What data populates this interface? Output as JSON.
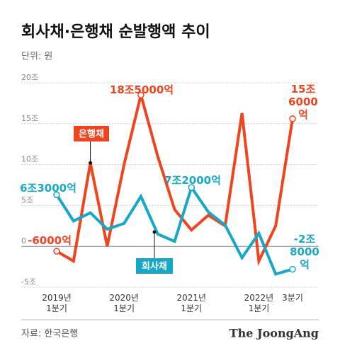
{
  "chart_data": {
    "type": "line",
    "title": "회사채·은행채 순발행액 추이",
    "subtitle": "단위: 원",
    "source": "자료: 한국은행",
    "brand": "The JoongAng",
    "categories": [
      "2019년\n1분기",
      null,
      null,
      null,
      "2020년\n1분기",
      null,
      null,
      null,
      "2021년\n1분기",
      null,
      null,
      null,
      "2022년\n1분기",
      null,
      "3분기"
    ],
    "series": [
      {
        "name": "은행채",
        "color": "#f0441e",
        "values": [
          -0.6,
          -1.8,
          10.2,
          0,
          10,
          18.5,
          11,
          4.5,
          2,
          3.8,
          2.5,
          16.3,
          -1.8,
          2.5,
          15.6
        ],
        "value_labels": [
          "-6000억",
          null,
          null,
          null,
          null,
          "18조5000억",
          null,
          null,
          null,
          null,
          null,
          null,
          null,
          null,
          "15조\n6000억"
        ]
      },
      {
        "name": "회사채",
        "color": "#17a7c9",
        "values": [
          6.3,
          3.1,
          4.1,
          2.1,
          2.8,
          6.1,
          1.5,
          0.6,
          7.2,
          4.2,
          2.6,
          -1.4,
          1.6,
          -3.4,
          -2.8
        ],
        "value_labels": [
          "6조3000억",
          null,
          null,
          null,
          null,
          null,
          null,
          null,
          "7조2000억",
          null,
          null,
          null,
          null,
          null,
          "-2조\n8000억"
        ]
      }
    ],
    "ylim": [
      -5,
      20
    ],
    "yticks": [
      {
        "value": 20,
        "label": "20조"
      },
      {
        "value": 15,
        "label": "15조"
      },
      {
        "value": 10,
        "label": "10조"
      },
      {
        "value": 5,
        "label": "5조"
      },
      0,
      {
        "value": -5,
        "label": "-5조"
      }
    ],
    "grid": true
  }
}
